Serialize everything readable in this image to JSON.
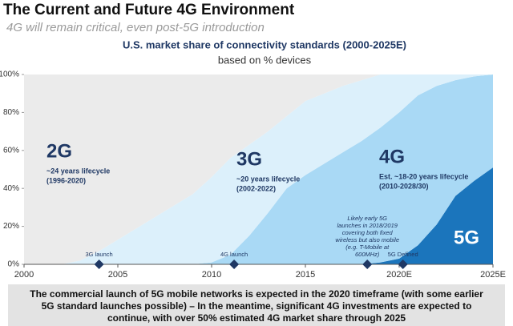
{
  "header": {
    "title": "The Current and Future 4G Environment",
    "subtitle": "4G will remain critical, even post-5G introduction"
  },
  "chart_data": {
    "type": "stacked_area",
    "title": "U.S. market share of connectivity standards (2000-2025E)",
    "subtitle": "based on % devices",
    "x": [
      2000,
      2001,
      2002,
      2003,
      2004,
      2005,
      2006,
      2007,
      2008,
      2009,
      2010,
      2011,
      2012,
      2013,
      2014,
      2015,
      2016,
      2017,
      2018,
      2019,
      2020,
      2021,
      2022,
      2023,
      2024,
      2025
    ],
    "series": [
      {
        "name": "5G",
        "color": "#1b75bc",
        "values": [
          0,
          0,
          0,
          0,
          0,
          0,
          0,
          0,
          0,
          0,
          0,
          0,
          0,
          0,
          0,
          0,
          0,
          0,
          0,
          1,
          3,
          10,
          21,
          36,
          44,
          51
        ]
      },
      {
        "name": "4G",
        "color": "#a9d9f5",
        "lifecycle": "Est. ~18-20 years lifecycle",
        "period": "(2010-2028/30)",
        "values": [
          0,
          0,
          0,
          0,
          0,
          0,
          0,
          0,
          0,
          0,
          1,
          5,
          15,
          27,
          40,
          47,
          53,
          59,
          65,
          71,
          77,
          79,
          73,
          61,
          55,
          49
        ]
      },
      {
        "name": "3G",
        "color": "#dcf0fb",
        "lifecycle": "~20 years lifecycle",
        "period": "(2002-2022)",
        "values": [
          0,
          0,
          0,
          2,
          7,
          13,
          19,
          25,
          31,
          37,
          45,
          51,
          48,
          43,
          38,
          39,
          37,
          35,
          32,
          28,
          20,
          11,
          6,
          3,
          1,
          0
        ]
      },
      {
        "name": "2G",
        "color": "#ebebeb",
        "lifecycle": "~24 years lifecycle",
        "period": "(1996-2020)",
        "values": [
          100,
          100,
          100,
          98,
          93,
          87,
          81,
          75,
          69,
          63,
          54,
          44,
          37,
          30,
          22,
          14,
          10,
          6,
          3,
          0,
          0,
          0,
          0,
          0,
          0,
          0
        ]
      }
    ],
    "xlim": [
      2000,
      2025
    ],
    "xticks": [
      2000,
      2005,
      2010,
      2015,
      {
        "value": 2020,
        "label": "2020E"
      },
      {
        "value": 2025,
        "label": "2025E"
      }
    ],
    "ylim": [
      0,
      100
    ],
    "yticks": [
      {
        "value": 0,
        "label": "0%"
      },
      {
        "value": 20,
        "label": "20%"
      },
      {
        "value": 40,
        "label": "40%"
      },
      {
        "value": 60,
        "label": "60%"
      },
      {
        "value": 80,
        "label": "80%"
      },
      {
        "value": 100,
        "label": "100%"
      }
    ],
    "milestones": [
      {
        "x": 2004,
        "label": [
          "3G launch"
        ]
      },
      {
        "x": 2011.2,
        "label": [
          "4G launch"
        ]
      },
      {
        "x": 2018.3,
        "label": [
          "Likely early 5G",
          "launches in 2018/2019",
          "covering both fixed",
          "wireless but also mobile",
          "(e.g. T-Mobile at",
          "600MHz)"
        ]
      },
      {
        "x": 2020.2,
        "label": [
          "5G Defined"
        ]
      }
    ]
  },
  "footer": [
    "The commercial launch of 5G mobile networks is expected in the 2020 timeframe (with some earlier",
    "5G standard launches possible) – In the meantime, significant 4G investments are expected to",
    "continue, with over 50% estimated 4G market share through 2025"
  ]
}
